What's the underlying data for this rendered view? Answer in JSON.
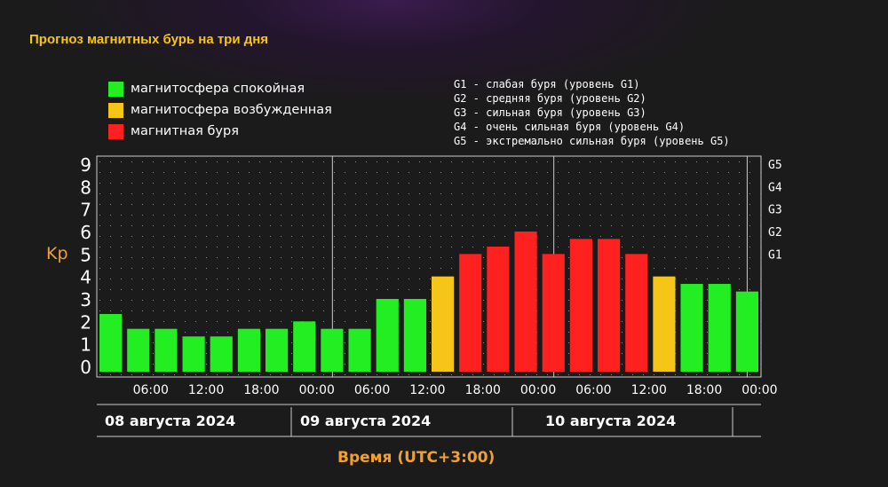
{
  "title": "Прогноз магнитных бурь на три дня",
  "legend": {
    "items": [
      {
        "label": "магнитосфера спокойная",
        "color": "#22ee22"
      },
      {
        "label": "магнитосфера возбужденная",
        "color": "#f5c518"
      },
      {
        "label": "магнитная буря",
        "color": "#ff2020"
      }
    ]
  },
  "storm_levels": [
    "G1 - слабая буря (уровень G1)",
    "G2 - средняя буря (уровень G2)",
    "G3 - сильная буря (уровень G3)",
    "G4 - очень сильная буря (уровень G4)",
    "G5 - экстремально сильная буря (уровень G5)"
  ],
  "chart_data": {
    "type": "bar",
    "title": "Прогноз магнитных бурь на три дня",
    "ylabel": "Kp",
    "xlabel": "Время (UTC+3:00)",
    "ylim": [
      0,
      9
    ],
    "yticks": [
      "0",
      "1",
      "2",
      "3",
      "4",
      "5",
      "6",
      "7",
      "8",
      "9"
    ],
    "right_axis": [
      {
        "label": "G1",
        "kp": 5
      },
      {
        "label": "G2",
        "kp": 6
      },
      {
        "label": "G3",
        "kp": 7
      },
      {
        "label": "G4",
        "kp": 8
      },
      {
        "label": "G5",
        "kp": 9
      }
    ],
    "time_ticks": [
      "06:00",
      "12:00",
      "18:00",
      "00:00",
      "06:00",
      "12:00",
      "18:00",
      "00:00",
      "06:00",
      "12:00",
      "18:00",
      "00:00"
    ],
    "days": [
      "08 августа 2024",
      "09 августа 2024",
      "10 августа 2024"
    ],
    "values": [
      2.33,
      1.67,
      1.67,
      1.33,
      1.33,
      1.67,
      1.67,
      2.0,
      1.67,
      1.67,
      3.0,
      3.0,
      4.0,
      5.0,
      5.33,
      6.0,
      5.0,
      5.67,
      5.67,
      5.0,
      4.0,
      3.67,
      3.67,
      3.33
    ],
    "bar_colors": [
      "green",
      "green",
      "green",
      "green",
      "green",
      "green",
      "green",
      "green",
      "green",
      "green",
      "green",
      "green",
      "yellow",
      "red",
      "red",
      "red",
      "red",
      "red",
      "red",
      "red",
      "yellow",
      "green",
      "green",
      "green"
    ],
    "colors": {
      "green": "#22ee22",
      "yellow": "#f5c518",
      "red": "#ff2020"
    },
    "grid": true
  }
}
